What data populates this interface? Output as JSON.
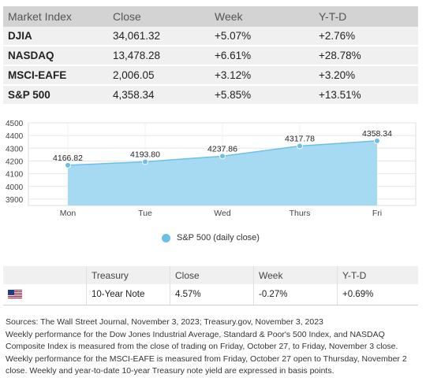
{
  "market_table": {
    "headers": [
      "Market Index",
      "Close",
      "Week",
      "Y-T-D"
    ],
    "rows": [
      {
        "name": "DJIA",
        "close": "34,061.32",
        "week": "+5.07%",
        "ytd": "+2.76%"
      },
      {
        "name": "NASDAQ",
        "close": "13,478.28",
        "week": "+6.61%",
        "ytd": "+28.78%"
      },
      {
        "name": "MSCI-EAFE",
        "close": "2,006.05",
        "week": "+3.12%",
        "ytd": "+3.20%"
      },
      {
        "name": "S&P 500",
        "close": "4,358.34",
        "week": "+5.85%",
        "ytd": "+13.51%"
      }
    ]
  },
  "chart_data": {
    "type": "area",
    "categories": [
      "Mon",
      "Tue",
      "Wed",
      "Thurs",
      "Fri"
    ],
    "series": [
      {
        "name": "S&P 500 (daily close)",
        "values": [
          4166.82,
          4193.8,
          4237.86,
          4317.78,
          4358.34
        ]
      }
    ],
    "data_labels": [
      "4166.82",
      "4193.80",
      "4237.86",
      "4317.78",
      "4358.34"
    ],
    "yticks": [
      3900,
      4000,
      4100,
      4200,
      4300,
      4400,
      4500
    ],
    "ylim": [
      3850,
      4500
    ],
    "grid": true,
    "legend": "bottom-center",
    "color": "#6cc0e8",
    "marker_color": "#6cc0e8"
  },
  "legend_label": "S&P 500 (daily close)",
  "treasury_table": {
    "headers": [
      "",
      "Treasury",
      "Close",
      "Week",
      "Y-T-D"
    ],
    "row": {
      "flag_icon": "us-flag-icon",
      "name": "10-Year Note",
      "close": "4.57%",
      "week": "-0.27%",
      "ytd": "+0.69%"
    }
  },
  "notes": {
    "sources": "Sources: The Wall Street Journal, November 3, 2023; Treasury.gov, November 3, 2023",
    "body": "Weekly performance for the Dow Jones Industrial Average, Standard & Poor's 500 Index, and NASDAQ Composite Index is measured from the close of trading on Friday, October 27, to Friday, November 3 close. Weekly performance for the MSCI-EAFE is measured from Friday, October 27 open to Thursday, November 2 close. Weekly and year-to-date 10-year Treasury note yield are expressed in basis points."
  }
}
